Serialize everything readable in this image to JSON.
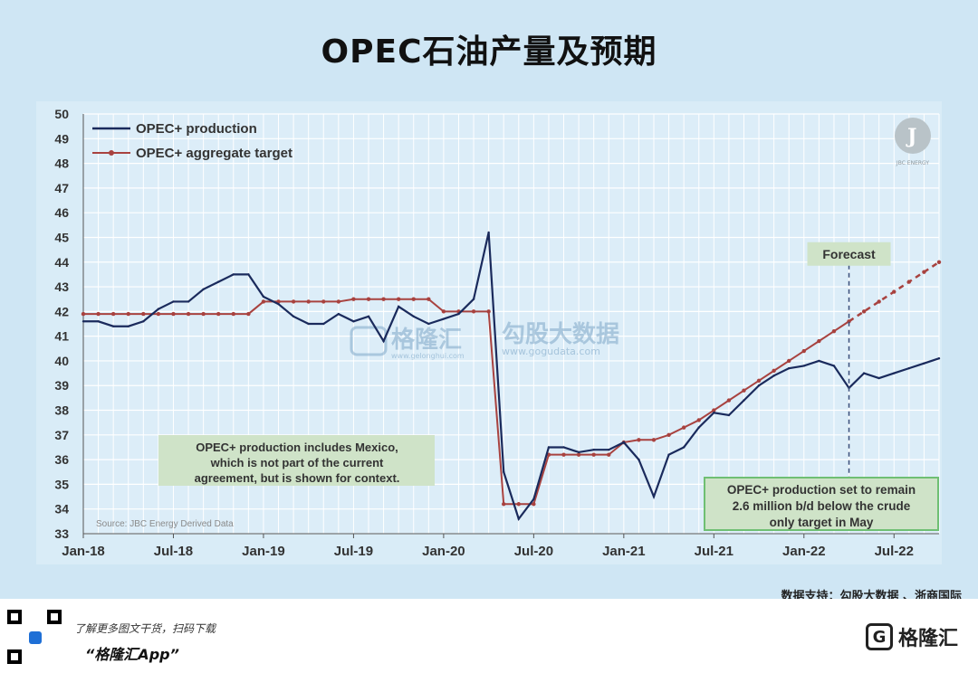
{
  "page": {
    "title": "OPEC石油产量及预期",
    "source_line": "数据支持：勾股大数据 、浙商国际"
  },
  "footer": {
    "line1": "了解更多图文干货，扫码下载",
    "line2": "“格隆汇App”",
    "brand_text": "格隆汇",
    "brand_icon_char": "G"
  },
  "watermark": {
    "left_text": "格隆汇",
    "left_sub": "www.gelonghui.com",
    "right_text": "勾股大数据",
    "right_sub": "www.gogudata.com"
  },
  "colors": {
    "production": "#1a2a5c",
    "target": "#a8423f",
    "grid": "#ffffff",
    "annotation_bg": "#cfe3c8",
    "annotation_border": "#6fbf73"
  },
  "chart_data": {
    "type": "line",
    "ylim": [
      33,
      50
    ],
    "yticks": [
      33,
      34,
      35,
      36,
      37,
      38,
      39,
      40,
      41,
      42,
      43,
      44,
      45,
      46,
      47,
      48,
      49,
      50
    ],
    "xlim": [
      0,
      57
    ],
    "xtick_labels": [
      "Jan-18",
      "Jul-18",
      "Jan-19",
      "Jul-19",
      "Jan-20",
      "Jul-20",
      "Jan-21",
      "Jul-21",
      "Jan-22",
      "Jul-22"
    ],
    "xtick_positions": [
      0,
      6,
      12,
      18,
      24,
      30,
      36,
      42,
      48,
      54
    ],
    "grid": true,
    "legend_placement": "top-left",
    "series": [
      {
        "name": "OPEC+ production",
        "style": "solid",
        "x": [
          0,
          1,
          2,
          3,
          4,
          5,
          6,
          7,
          8,
          9,
          10,
          11,
          12,
          13,
          14,
          15,
          16,
          17,
          18,
          19,
          20,
          21,
          22,
          23,
          24,
          25,
          26,
          27,
          28,
          29,
          30,
          31,
          32,
          33,
          34,
          35,
          36,
          37,
          38,
          39,
          40,
          41,
          42,
          43,
          44,
          45,
          46,
          47,
          48,
          49,
          50,
          51,
          52,
          53,
          54,
          55,
          56,
          57
        ],
        "values": [
          41.6,
          41.6,
          41.4,
          41.4,
          41.6,
          42.1,
          42.4,
          42.4,
          42.9,
          43.2,
          43.5,
          43.5,
          42.6,
          42.3,
          41.8,
          41.5,
          41.5,
          41.9,
          41.6,
          41.8,
          40.8,
          42.2,
          41.8,
          41.5,
          41.7,
          41.9,
          42.5,
          45.2,
          35.5,
          33.6,
          34.4,
          36.5,
          36.5,
          36.3,
          36.4,
          36.4,
          36.7,
          36.0,
          34.5,
          36.2,
          36.5,
          37.3,
          37.9,
          37.8,
          38.4,
          39.0,
          39.4,
          39.7,
          39.8,
          40.0,
          39.8,
          38.9,
          39.5,
          39.3,
          39.5,
          39.7,
          39.9,
          40.1
        ]
      },
      {
        "name": "OPEC+ aggregate target",
        "style": "solid+dashed-forecast",
        "x": [
          0,
          1,
          2,
          3,
          4,
          5,
          6,
          7,
          8,
          9,
          10,
          11,
          12,
          13,
          14,
          15,
          16,
          17,
          18,
          19,
          20,
          21,
          22,
          23,
          24,
          25,
          26,
          27,
          28,
          29,
          30,
          31,
          32,
          33,
          34,
          35,
          36,
          37,
          38,
          39,
          40,
          41,
          42,
          43,
          44,
          45,
          46,
          47,
          48,
          49,
          50,
          51,
          52,
          53,
          54,
          55,
          56,
          57
        ],
        "values": [
          41.9,
          41.9,
          41.9,
          41.9,
          41.9,
          41.9,
          41.9,
          41.9,
          41.9,
          41.9,
          41.9,
          41.9,
          42.4,
          42.4,
          42.4,
          42.4,
          42.4,
          42.4,
          42.5,
          42.5,
          42.5,
          42.5,
          42.5,
          42.5,
          42.0,
          42.0,
          42.0,
          42.0,
          34.2,
          34.2,
          34.2,
          36.2,
          36.2,
          36.2,
          36.2,
          36.2,
          36.7,
          36.8,
          36.8,
          37.0,
          37.3,
          37.6,
          38.0,
          38.4,
          38.8,
          39.2,
          39.6,
          40.0,
          40.4,
          40.8,
          41.2,
          41.6,
          42.0,
          42.4,
          42.8,
          43.2,
          43.6,
          44.0
        ]
      }
    ],
    "forecast_start_x": 51,
    "annotations": [
      {
        "id": "forecast",
        "text": "Forecast",
        "x": 51,
        "y": 44.0
      },
      {
        "id": "mexico",
        "lines": [
          "OPEC+ production includes Mexico,",
          "which is not part of the current",
          "agreement, but is shown for context."
        ]
      },
      {
        "id": "remain",
        "lines": [
          "OPEC+ production set to remain",
          "2.6 million b/d below the crude",
          "only target in May"
        ]
      },
      {
        "id": "source",
        "text": "Source: JBC Energy  Derived Data"
      }
    ],
    "logo_text": "JBC ENERGY"
  }
}
